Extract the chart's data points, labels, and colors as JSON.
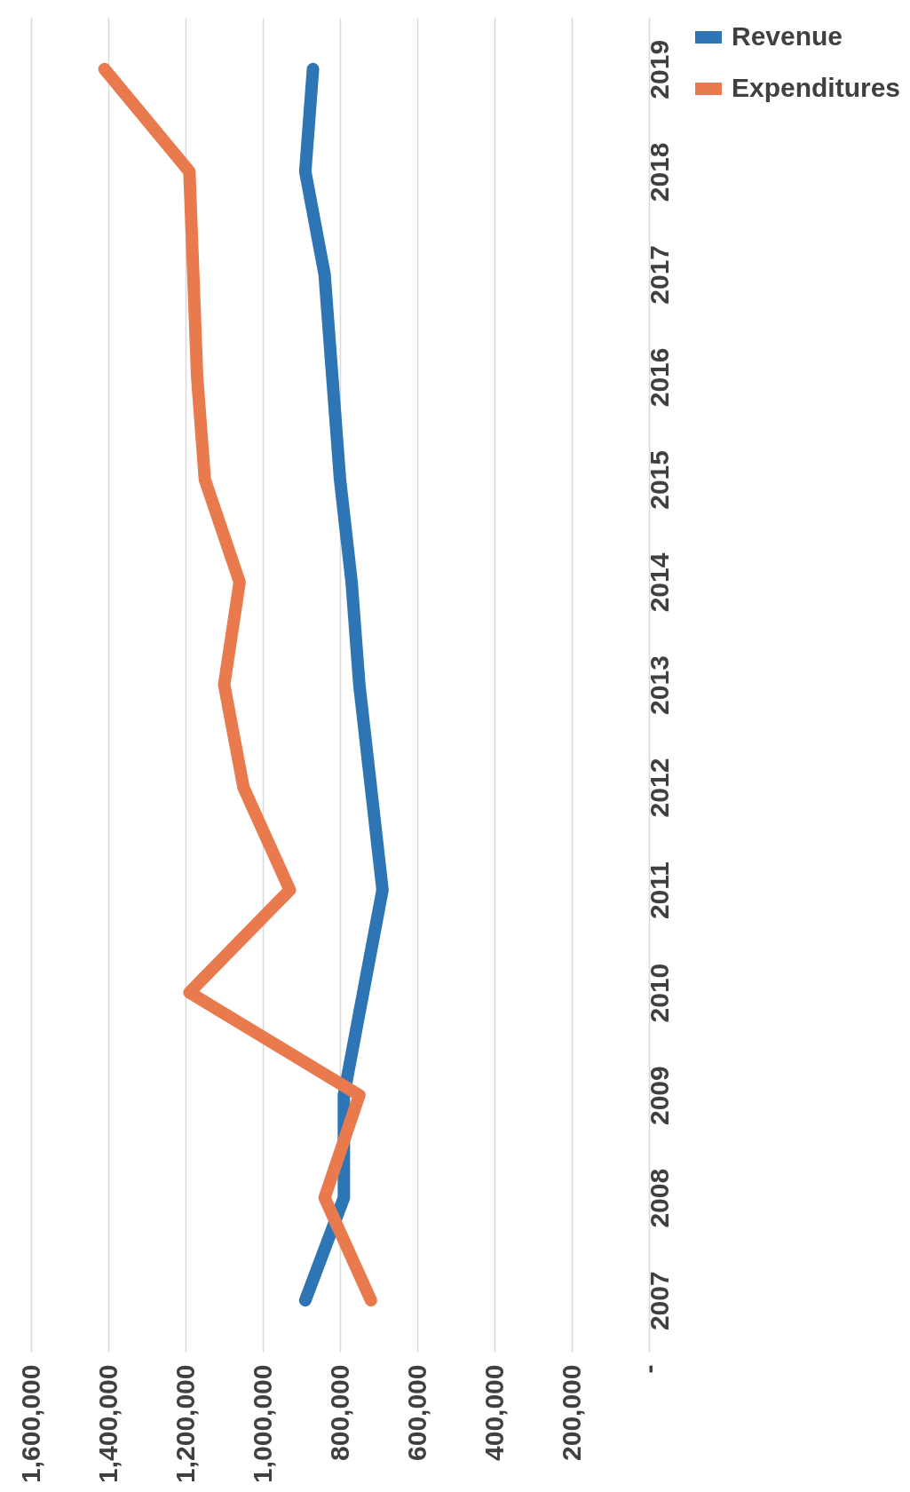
{
  "chart_data": {
    "type": "line",
    "orientation": "horizontal",
    "categories": [
      "2019",
      "2018",
      "2017",
      "2016",
      "2015",
      "2014",
      "2013",
      "2012",
      "2011",
      "2010",
      "2009",
      "2008",
      "2007"
    ],
    "series": [
      {
        "name": "Revenue",
        "color": "#2e75b6",
        "values": [
          870000,
          890000,
          840000,
          820000,
          800000,
          770000,
          750000,
          720000,
          690000,
          740000,
          790000,
          790000,
          890000
        ]
      },
      {
        "name": "Expenditures",
        "color": "#e97a4e",
        "values": [
          1410000,
          1190000,
          1180000,
          1170000,
          1150000,
          1060000,
          1100000,
          1050000,
          930000,
          1190000,
          750000,
          840000,
          720000
        ]
      }
    ],
    "xlim": [
      1600000,
      0
    ],
    "xticks": [
      {
        "value": 0,
        "label": "-"
      },
      {
        "value": 200000,
        "label": "200,000"
      },
      {
        "value": 400000,
        "label": "400,000"
      },
      {
        "value": 600000,
        "label": "600,000"
      },
      {
        "value": 800000,
        "label": "800,000"
      },
      {
        "value": 1000000,
        "label": "1,000,000"
      },
      {
        "value": 1200000,
        "label": "1,200,000"
      },
      {
        "value": 1400000,
        "label": "1,400,000"
      },
      {
        "value": 1600000,
        "label": "1,600,000"
      }
    ],
    "grid": "x",
    "legend": "right",
    "marker": "none",
    "line_style": "solid"
  }
}
